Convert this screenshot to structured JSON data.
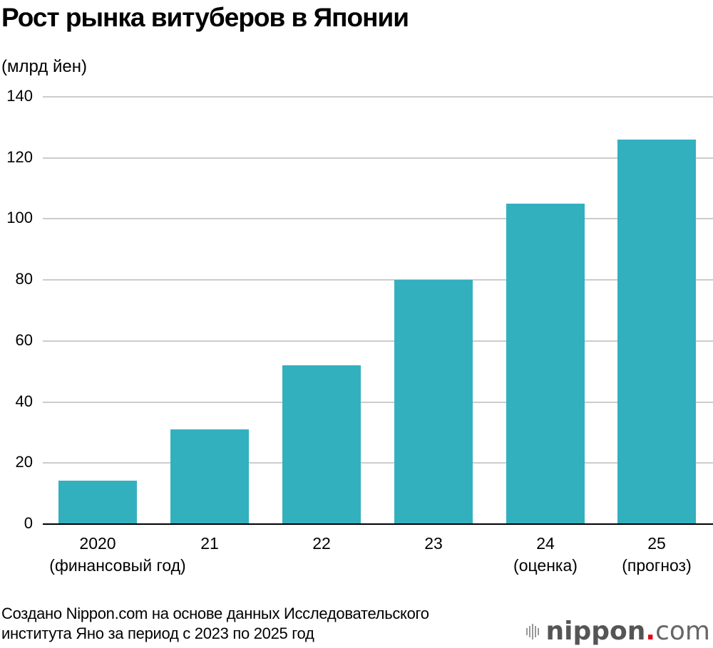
{
  "title": "Рост рынка витуберов в Японии",
  "unit_label": "(млрд йен)",
  "colors": {
    "bar": "#33b0be",
    "grid": "#cccccc",
    "axis": "#000000",
    "logo_dot": "#e60012"
  },
  "y_ticks": [
    "0",
    "20",
    "40",
    "60",
    "80",
    "100",
    "120",
    "140"
  ],
  "x_labels": [
    {
      "line1": "2020",
      "line2": "(финансовый год)"
    },
    {
      "line1": "21",
      "line2": ""
    },
    {
      "line1": "22",
      "line2": ""
    },
    {
      "line1": "23",
      "line2": ""
    },
    {
      "line1": "24",
      "line2": "(оценка)"
    },
    {
      "line1": "25",
      "line2": "(прогноз)"
    }
  ],
  "source": {
    "line1": "Создано Nippon.com на основе данных Исследовательского",
    "line2": "института Яно за период с 2023 по 2025 год"
  },
  "logo": {
    "name": "nippon",
    "dot": ".",
    "suffix": "com"
  },
  "chart_data": {
    "type": "bar",
    "title": "Рост рынка витуберов в Японии",
    "xlabel": "",
    "ylabel": "(млрд йен)",
    "categories": [
      "2020 (финансовый год)",
      "21",
      "22",
      "23",
      "24 (оценка)",
      "25 (прогноз)"
    ],
    "values": [
      14.2,
      31,
      52,
      80,
      105,
      126
    ],
    "ylim": [
      0,
      140
    ],
    "yticks": [
      0,
      20,
      40,
      60,
      80,
      100,
      120,
      140
    ],
    "grid": true,
    "legend": null
  }
}
